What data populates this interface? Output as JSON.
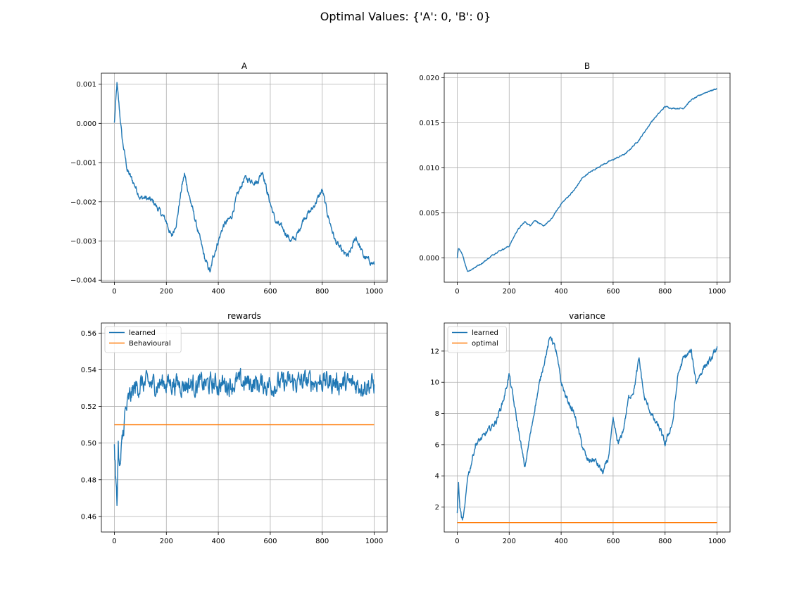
{
  "figure": {
    "suptitle": "Optimal Values: {'A': 0, 'B': 0}"
  },
  "colors": {
    "series1": "#1f77b4",
    "series2": "#ff7f0e",
    "grid": "#b0b0b0"
  },
  "chart_data": [
    {
      "id": "A",
      "type": "line",
      "title": "A",
      "xlabel": "",
      "ylabel": "",
      "xlim": [
        -50,
        1050
      ],
      "ylim": [
        -0.00405,
        0.00128
      ],
      "xticks": [
        0,
        200,
        400,
        600,
        800,
        1000
      ],
      "xtick_labels": [
        "0",
        "200",
        "400",
        "600",
        "800",
        "1000"
      ],
      "yticks": [
        -0.004,
        -0.003,
        -0.002,
        -0.001,
        0.0,
        0.001
      ],
      "ytick_labels": [
        "−0.004",
        "−0.003",
        "−0.002",
        "−0.001",
        "0.000",
        "0.001"
      ],
      "grid": true,
      "legend": null,
      "noise": 0.00012,
      "series": [
        {
          "color": "#1f77b4",
          "x": [
            0,
            10,
            20,
            30,
            50,
            80,
            100,
            120,
            150,
            170,
            200,
            220,
            240,
            260,
            270,
            290,
            320,
            350,
            370,
            380,
            400,
            420,
            450,
            470,
            500,
            550,
            570,
            590,
            620,
            650,
            680,
            700,
            730,
            760,
            800,
            820,
            850,
            880,
            900,
            930,
            960,
            1000
          ],
          "y": [
            0.0,
            0.001,
            0.0003,
            -0.0004,
            -0.0012,
            -0.0016,
            -0.0019,
            -0.0019,
            -0.002,
            -0.0022,
            -0.0025,
            -0.0029,
            -0.0025,
            -0.0016,
            -0.0013,
            -0.0019,
            -0.0027,
            -0.0035,
            -0.0038,
            -0.0034,
            -0.003,
            -0.0026,
            -0.0024,
            -0.0019,
            -0.0014,
            -0.0015,
            -0.0012,
            -0.0018,
            -0.0025,
            -0.0027,
            -0.003,
            -0.0029,
            -0.0024,
            -0.0022,
            -0.0017,
            -0.0023,
            -0.003,
            -0.0033,
            -0.0034,
            -0.0029,
            -0.0034,
            -0.0036
          ]
        }
      ]
    },
    {
      "id": "B",
      "type": "line",
      "title": "B",
      "xlabel": "",
      "ylabel": "",
      "xlim": [
        -50,
        1050
      ],
      "ylim": [
        -0.0027,
        0.0205
      ],
      "xticks": [
        0,
        200,
        400,
        600,
        800,
        1000
      ],
      "xtick_labels": [
        "0",
        "200",
        "400",
        "600",
        "800",
        "1000"
      ],
      "yticks": [
        0.0,
        0.005,
        0.01,
        0.015,
        0.02
      ],
      "ytick_labels": [
        "0.000",
        "0.005",
        "0.010",
        "0.015",
        "0.020"
      ],
      "grid": true,
      "legend": null,
      "noise": 0.00012,
      "series": [
        {
          "color": "#1f77b4",
          "x": [
            0,
            5,
            20,
            40,
            60,
            100,
            150,
            200,
            230,
            260,
            280,
            300,
            330,
            360,
            400,
            450,
            480,
            500,
            550,
            600,
            650,
            700,
            750,
            800,
            830,
            870,
            900,
            950,
            1000
          ],
          "y": [
            0.0,
            0.0011,
            0.0003,
            -0.0015,
            -0.0012,
            -0.0005,
            0.0006,
            0.0013,
            0.003,
            0.004,
            0.0036,
            0.0042,
            0.0035,
            0.0042,
            0.006,
            0.0075,
            0.0088,
            0.0093,
            0.0102,
            0.0109,
            0.0116,
            0.0131,
            0.0152,
            0.0168,
            0.0166,
            0.0166,
            0.0175,
            0.0183,
            0.0188
          ]
        }
      ]
    },
    {
      "id": "rewards",
      "type": "line",
      "title": "rewards",
      "xlabel": "",
      "ylabel": "",
      "xlim": [
        -50,
        1050
      ],
      "ylim": [
        0.4515,
        0.5655
      ],
      "xticks": [
        0,
        200,
        400,
        600,
        800,
        1000
      ],
      "xtick_labels": [
        "0",
        "200",
        "400",
        "600",
        "800",
        "1000"
      ],
      "yticks": [
        0.46,
        0.48,
        0.5,
        0.52,
        0.54,
        0.56
      ],
      "ytick_labels": [
        "0.46",
        "0.48",
        "0.50",
        "0.52",
        "0.54",
        "0.56"
      ],
      "grid": true,
      "legend": {
        "loc": "upper left",
        "labels": [
          "learned",
          "Behavioural"
        ]
      },
      "noise": 0.009,
      "series": [
        {
          "name": "learned",
          "color": "#1f77b4",
          "x": [
            0,
            5,
            10,
            15,
            20,
            25,
            30,
            40,
            60,
            80,
            100,
            150,
            200,
            300,
            400,
            500,
            600,
            700,
            800,
            900,
            1000
          ],
          "y": [
            0.5,
            0.48,
            0.465,
            0.5,
            0.485,
            0.49,
            0.5,
            0.515,
            0.525,
            0.53,
            0.532,
            0.532,
            0.533,
            0.532,
            0.532,
            0.533,
            0.532,
            0.533,
            0.534,
            0.532,
            0.532
          ]
        },
        {
          "name": "Behavioural",
          "color": "#ff7f0e",
          "x": [
            0,
            1000
          ],
          "y": [
            0.51,
            0.51
          ]
        }
      ]
    },
    {
      "id": "variance",
      "type": "line",
      "title": "variance",
      "xlabel": "",
      "ylabel": "",
      "xlim": [
        -50,
        1050
      ],
      "ylim": [
        0.4,
        13.8
      ],
      "xticks": [
        0,
        200,
        400,
        600,
        800,
        1000
      ],
      "xtick_labels": [
        "0",
        "200",
        "400",
        "600",
        "800",
        "1000"
      ],
      "yticks": [
        2,
        4,
        6,
        8,
        10,
        12
      ],
      "ytick_labels": [
        "2",
        "4",
        "6",
        "8",
        "10",
        "12"
      ],
      "grid": true,
      "legend": {
        "loc": "upper left",
        "labels": [
          "learned",
          "optimal"
        ]
      },
      "noise": 0.3,
      "series": [
        {
          "name": "learned",
          "color": "#1f77b4",
          "x": [
            0,
            5,
            10,
            20,
            30,
            40,
            50,
            70,
            100,
            150,
            180,
            200,
            230,
            260,
            270,
            300,
            330,
            360,
            380,
            400,
            420,
            450,
            480,
            500,
            530,
            560,
            580,
            600,
            620,
            640,
            660,
            680,
            700,
            720,
            760,
            780,
            800,
            830,
            850,
            870,
            900,
            920,
            950,
            980,
            1000
          ],
          "y": [
            1.5,
            3.5,
            2.0,
            1.0,
            2.0,
            4.0,
            4.5,
            6.0,
            6.5,
            7.5,
            9.0,
            10.5,
            7.5,
            4.5,
            5.5,
            8.5,
            11.0,
            13.0,
            12.0,
            10.0,
            9.0,
            8.0,
            6.0,
            5.0,
            5.0,
            4.2,
            5.0,
            7.5,
            6.0,
            7.0,
            9.0,
            9.5,
            11.5,
            9.0,
            7.5,
            7.0,
            6.0,
            7.5,
            10.5,
            11.5,
            12.0,
            10.0,
            11.0,
            11.5,
            12.3
          ]
        },
        {
          "name": "optimal",
          "color": "#ff7f0e",
          "x": [
            0,
            1000
          ],
          "y": [
            1.0,
            1.0
          ]
        }
      ]
    }
  ]
}
